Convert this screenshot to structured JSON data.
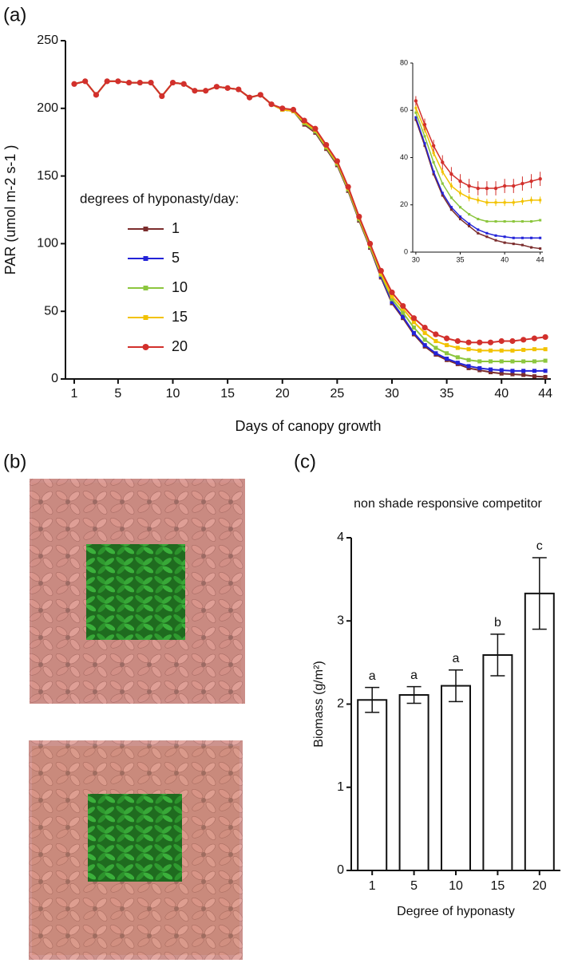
{
  "panel_labels": [
    "(a)",
    "(b)",
    "(c)"
  ],
  "chart_data": [
    {
      "type": "line",
      "x_label": "Days of canopy growth",
      "y_label": "PAR (umol m-2 s-1 )",
      "legend_title": "degrees of hyponasty/day:",
      "x": [
        1,
        2,
        3,
        4,
        5,
        6,
        7,
        8,
        9,
        10,
        11,
        12,
        13,
        14,
        15,
        16,
        17,
        18,
        19,
        20,
        21,
        22,
        23,
        24,
        25,
        26,
        27,
        28,
        29,
        30,
        31,
        32,
        33,
        34,
        35,
        36,
        37,
        38,
        39,
        40,
        41,
        42,
        43,
        44
      ],
      "xlim": [
        0.2,
        44.5
      ],
      "xticks": [
        1,
        5,
        10,
        15,
        20,
        25,
        30,
        35,
        40,
        44
      ],
      "ylim": [
        0,
        250
      ],
      "yticks": [
        0,
        50,
        100,
        150,
        200,
        250
      ],
      "series": [
        {
          "name": "1",
          "color": "#7b2d2d",
          "values": [
            218,
            220,
            210,
            220,
            220,
            219,
            219,
            219,
            209,
            219,
            218,
            213,
            213,
            216,
            215,
            214,
            208,
            210,
            203,
            199,
            198,
            188,
            182,
            170,
            158,
            139,
            117,
            97,
            75,
            56,
            45,
            33,
            24,
            18,
            14,
            11,
            8,
            6.5,
            5,
            4,
            3.5,
            3,
            2,
            1.5
          ]
        },
        {
          "name": "5",
          "color": "#2323d8",
          "values": [
            218,
            220,
            210,
            220,
            220,
            219,
            219,
            219,
            209,
            219,
            218,
            213,
            213,
            216,
            215,
            214,
            208,
            210,
            203,
            199,
            198,
            189,
            183,
            171,
            159,
            140,
            118,
            98,
            76,
            57,
            46,
            34,
            25,
            19,
            15,
            12,
            9.5,
            8,
            7,
            6.5,
            6,
            6,
            6,
            6
          ]
        },
        {
          "name": "10",
          "color": "#8cc63e",
          "values": [
            218,
            220,
            210,
            220,
            220,
            219,
            219,
            219,
            209,
            219,
            218,
            213,
            213,
            216,
            215,
            214,
            208,
            210,
            203,
            199,
            198,
            189,
            183,
            171,
            159,
            140,
            118,
            98,
            77,
            59,
            49,
            38,
            29,
            23,
            19,
            16,
            14,
            13,
            13,
            13,
            13,
            13,
            13,
            13.5
          ]
        },
        {
          "name": "15",
          "color": "#f2c200",
          "values": [
            218,
            220,
            210,
            220,
            220,
            219,
            219,
            219,
            209,
            219,
            218,
            213,
            213,
            216,
            215,
            214,
            208,
            210,
            203,
            199,
            198,
            190,
            184,
            172,
            160,
            141,
            119,
            99,
            78,
            61,
            52,
            42,
            34,
            28,
            25,
            23,
            22,
            21,
            21,
            21,
            21,
            21.5,
            22,
            22
          ]
        },
        {
          "name": "20",
          "color": "#d2302c",
          "values": [
            218,
            220,
            210,
            220,
            220,
            219,
            219,
            219,
            209,
            219,
            218,
            213,
            213,
            216,
            215,
            214,
            208,
            210,
            203,
            200,
            199,
            191,
            185,
            173,
            161,
            142,
            120,
            100,
            80,
            64,
            54,
            45,
            38,
            33,
            30,
            28,
            27,
            27,
            27,
            28,
            28,
            29,
            30,
            31
          ]
        }
      ]
    },
    {
      "type": "line",
      "x": [
        30,
        31,
        32,
        33,
        34,
        35,
        36,
        37,
        38,
        39,
        40,
        41,
        42,
        43,
        44
      ],
      "xlim": [
        29.65,
        44.3
      ],
      "xticks": [
        30,
        35,
        40,
        44
      ],
      "ylim": [
        0,
        80
      ],
      "yticks": [
        0,
        20,
        40,
        60,
        80
      ],
      "series": [
        {
          "color": "#7b2d2d",
          "values": [
            56,
            45,
            33,
            24,
            18,
            14,
            11,
            8,
            6.5,
            5,
            4,
            3.5,
            3,
            2,
            1.5
          ]
        },
        {
          "color": "#2323d8",
          "values": [
            57,
            46,
            34,
            25,
            19,
            15,
            12,
            9.5,
            8,
            7,
            6.5,
            6,
            6,
            6,
            6
          ]
        },
        {
          "color": "#8cc63e",
          "values": [
            59,
            49,
            38,
            29,
            23,
            19,
            16,
            14,
            13,
            13,
            13,
            13,
            13,
            13,
            13.5
          ]
        },
        {
          "color": "#f2c200",
          "values": [
            61,
            52,
            42,
            34,
            28,
            25,
            23,
            22,
            21,
            21,
            21,
            21,
            21.5,
            22,
            22
          ],
          "errors": [
            1.5,
            1.5,
            1.5,
            1.5,
            1.5,
            1.5,
            1.5,
            1.5,
            1.5,
            1.5,
            1.5,
            1.5,
            1.5,
            1.5,
            1.5
          ]
        },
        {
          "color": "#d2302c",
          "values": [
            64,
            54,
            45,
            38,
            33,
            30,
            28,
            27,
            27,
            27,
            28,
            28,
            29,
            30,
            31
          ],
          "errors": [
            2,
            2.5,
            2.5,
            3,
            3,
            3,
            3,
            3,
            3,
            3,
            3,
            3,
            3,
            3,
            3
          ]
        }
      ]
    },
    {
      "type": "bar",
      "title": "non shade responsive competitor",
      "x_label": "Degree of hyponasty",
      "y_label": "Biomass (g/m²)",
      "categories": [
        "1",
        "5",
        "10",
        "15",
        "20"
      ],
      "values": [
        2.05,
        2.11,
        2.22,
        2.59,
        3.33
      ],
      "errors": [
        0.15,
        0.1,
        0.19,
        0.25,
        0.43
      ],
      "annotations": [
        "a",
        "a",
        "a",
        "b",
        "c"
      ],
      "color": "#ffffff",
      "ylim": [
        0,
        4
      ],
      "yticks": [
        0,
        1,
        2,
        3,
        4
      ]
    }
  ]
}
